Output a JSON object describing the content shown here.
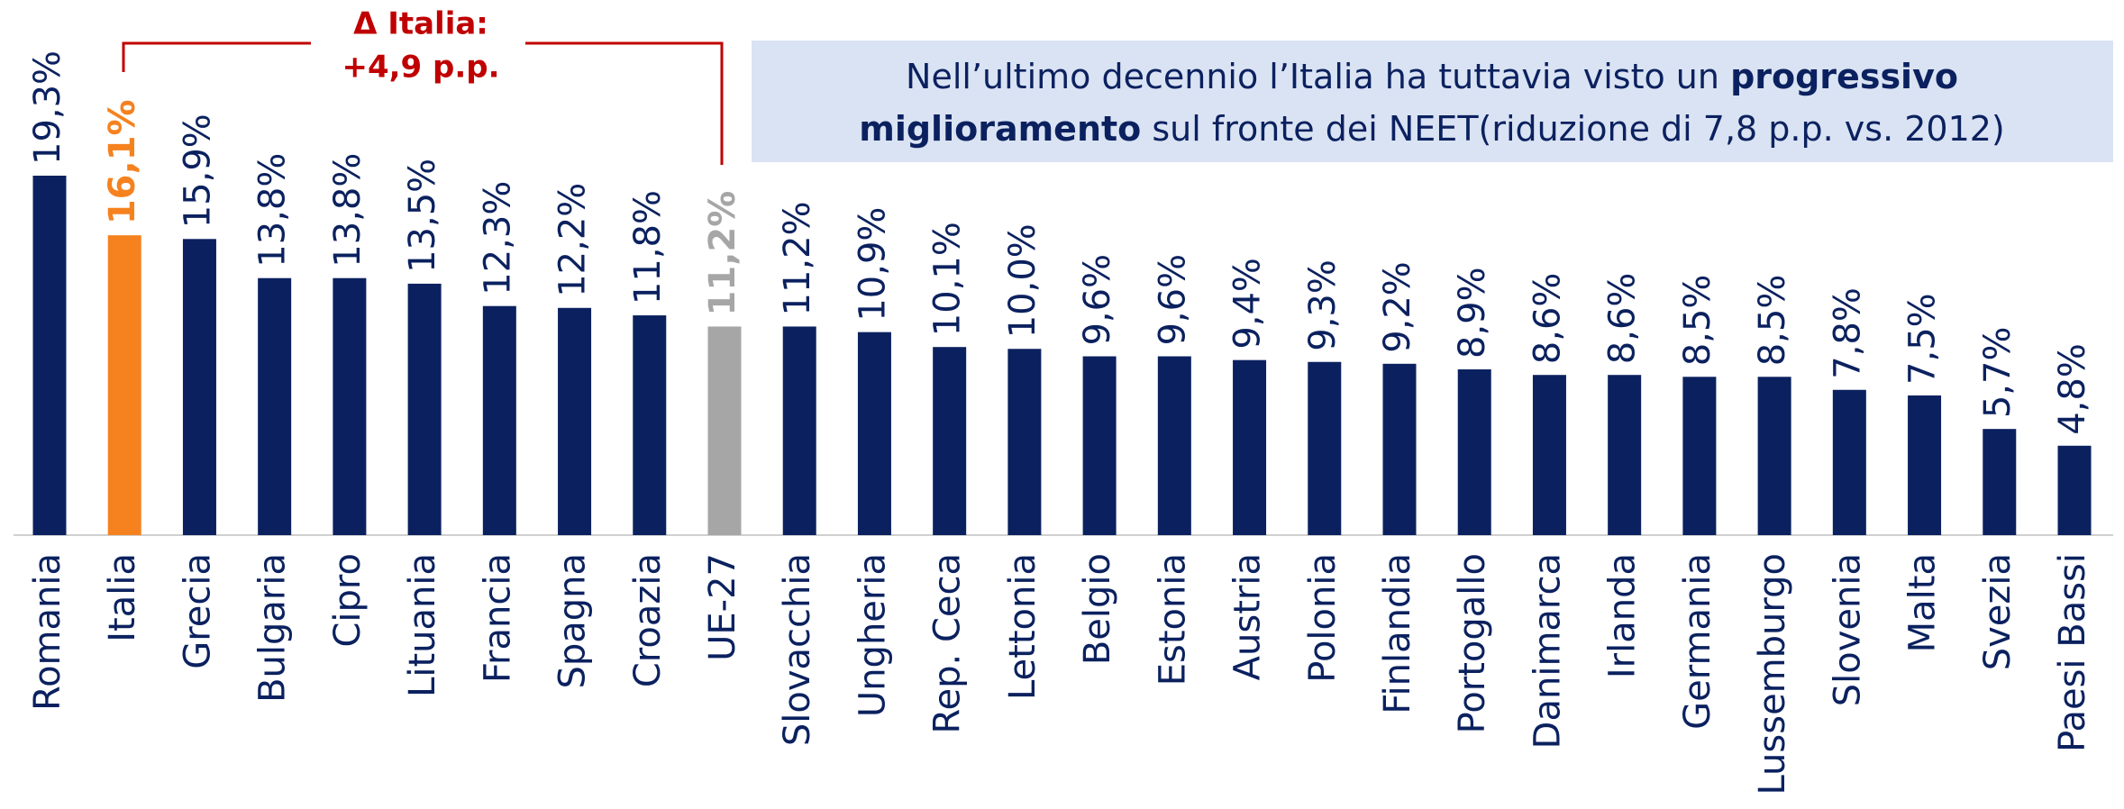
{
  "chart_data": {
    "type": "bar",
    "categories": [
      "Romania",
      "Italia",
      "Grecia",
      "Bulgaria",
      "Cipro",
      "Lituania",
      "Francia",
      "Spagna",
      "Croazia",
      "UE-27",
      "Slovacchia",
      "Ungheria",
      "Rep. Ceca",
      "Lettonia",
      "Belgio",
      "Estonia",
      "Austria",
      "Polonia",
      "Finlandia",
      "Portogallo",
      "Danimarca",
      "Irlanda",
      "Germania",
      "Lussemburgo",
      "Slovenia",
      "Malta",
      "Svezia",
      "Paesi Bassi"
    ],
    "values": [
      19.3,
      16.1,
      15.9,
      13.8,
      13.8,
      13.5,
      12.3,
      12.2,
      11.8,
      11.2,
      11.2,
      10.9,
      10.1,
      10.0,
      9.6,
      9.6,
      9.4,
      9.3,
      9.2,
      8.9,
      8.6,
      8.6,
      8.5,
      8.5,
      7.8,
      7.5,
      5.7,
      4.8
    ],
    "value_labels": [
      "19,3%",
      "16,1%",
      "15,9%",
      "13,8%",
      "13,8%",
      "13,5%",
      "12,3%",
      "12,2%",
      "11,8%",
      "11,2%",
      "11,2%",
      "10,9%",
      "10,1%",
      "10,0%",
      "9,6%",
      "9,6%",
      "9,4%",
      "9,3%",
      "9,2%",
      "8,9%",
      "8,6%",
      "8,6%",
      "8,5%",
      "8,5%",
      "7,8%",
      "7,5%",
      "5,7%",
      "4,8%"
    ],
    "colors": [
      "#0b215f",
      "#f5821f",
      "#0b215f",
      "#0b215f",
      "#0b215f",
      "#0b215f",
      "#0b215f",
      "#0b215f",
      "#0b215f",
      "#a6a6a6",
      "#0b215f",
      "#0b215f",
      "#0b215f",
      "#0b215f",
      "#0b215f",
      "#0b215f",
      "#0b215f",
      "#0b215f",
      "#0b215f",
      "#0b215f",
      "#0b215f",
      "#0b215f",
      "#0b215f",
      "#0b215f",
      "#0b215f",
      "#0b215f",
      "#0b215f",
      "#0b215f"
    ],
    "annotation": {
      "lines": [
        "Δ Italia:",
        "+4,9 p.p."
      ],
      "color": "#c00000"
    },
    "note": {
      "lines": [
        [
          {
            "text": "Nell’ultimo decennio l’Italia ha tuttavia visto un ",
            "bold": false
          },
          {
            "text": "progressivo",
            "bold": true
          }
        ],
        [
          {
            "text": "miglioramento",
            "bold": true
          },
          {
            "text": " sul fronte dei NEET(riduzione di 7,8 p.p. vs. 2012)",
            "bold": false
          }
        ]
      ]
    }
  }
}
